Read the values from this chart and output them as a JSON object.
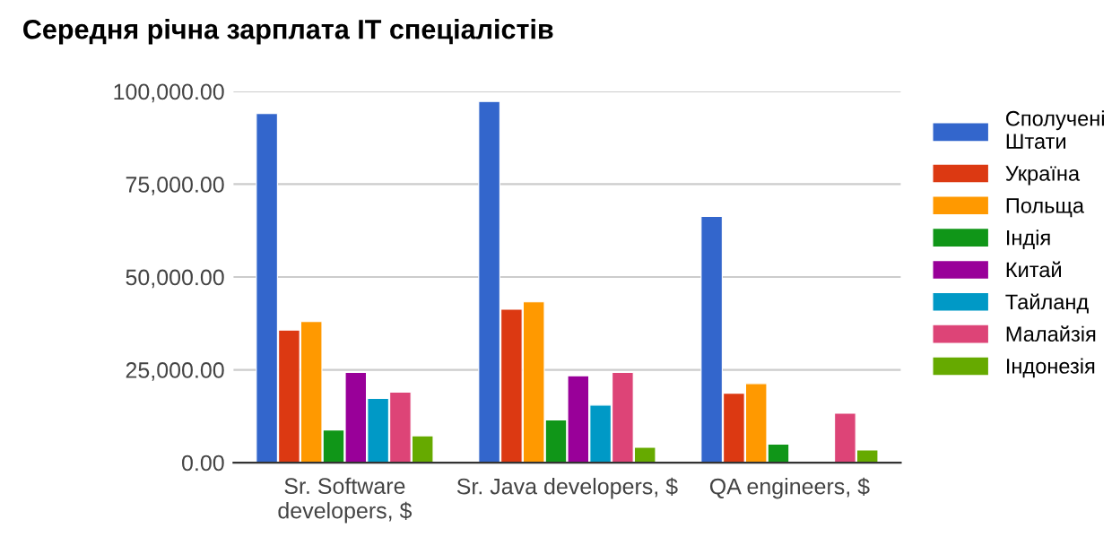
{
  "chart_data": {
    "type": "bar",
    "title": "Середня річна зарплата IT спеціалістів",
    "categories": [
      "Sr. Software developers, $",
      "Sr. Java developers, $",
      "QA engineers, $"
    ],
    "series": [
      {
        "name": "Сполучені Штати",
        "color": "#3366cc",
        "values": [
          94000,
          97300,
          66300
        ]
      },
      {
        "name": "Україна",
        "color": "#dc3912",
        "values": [
          35700,
          41300,
          18700
        ]
      },
      {
        "name": "Польща",
        "color": "#ff9900",
        "values": [
          38000,
          43300,
          21300
        ]
      },
      {
        "name": "Індія",
        "color": "#109618",
        "values": [
          8800,
          11500,
          5000
        ]
      },
      {
        "name": "Китай",
        "color": "#990099",
        "values": [
          24300,
          23400,
          null
        ]
      },
      {
        "name": "Тайланд",
        "color": "#0099c6",
        "values": [
          17300,
          15500,
          null
        ]
      },
      {
        "name": "Малайзія",
        "color": "#dd4477",
        "values": [
          19000,
          24300,
          13300
        ]
      },
      {
        "name": "Індонезія",
        "color": "#66aa00",
        "values": [
          7200,
          4100,
          3400
        ]
      }
    ],
    "ylim": [
      0,
      100000
    ],
    "yticks": [
      {
        "value": 0,
        "label": "0.00"
      },
      {
        "value": 25000,
        "label": "25,000.00"
      },
      {
        "value": 50000,
        "label": "50,000.00"
      },
      {
        "value": 75000,
        "label": "75,000.00"
      },
      {
        "value": 100000,
        "label": "100,000.00"
      }
    ],
    "grid": "y",
    "legend": "right"
  }
}
